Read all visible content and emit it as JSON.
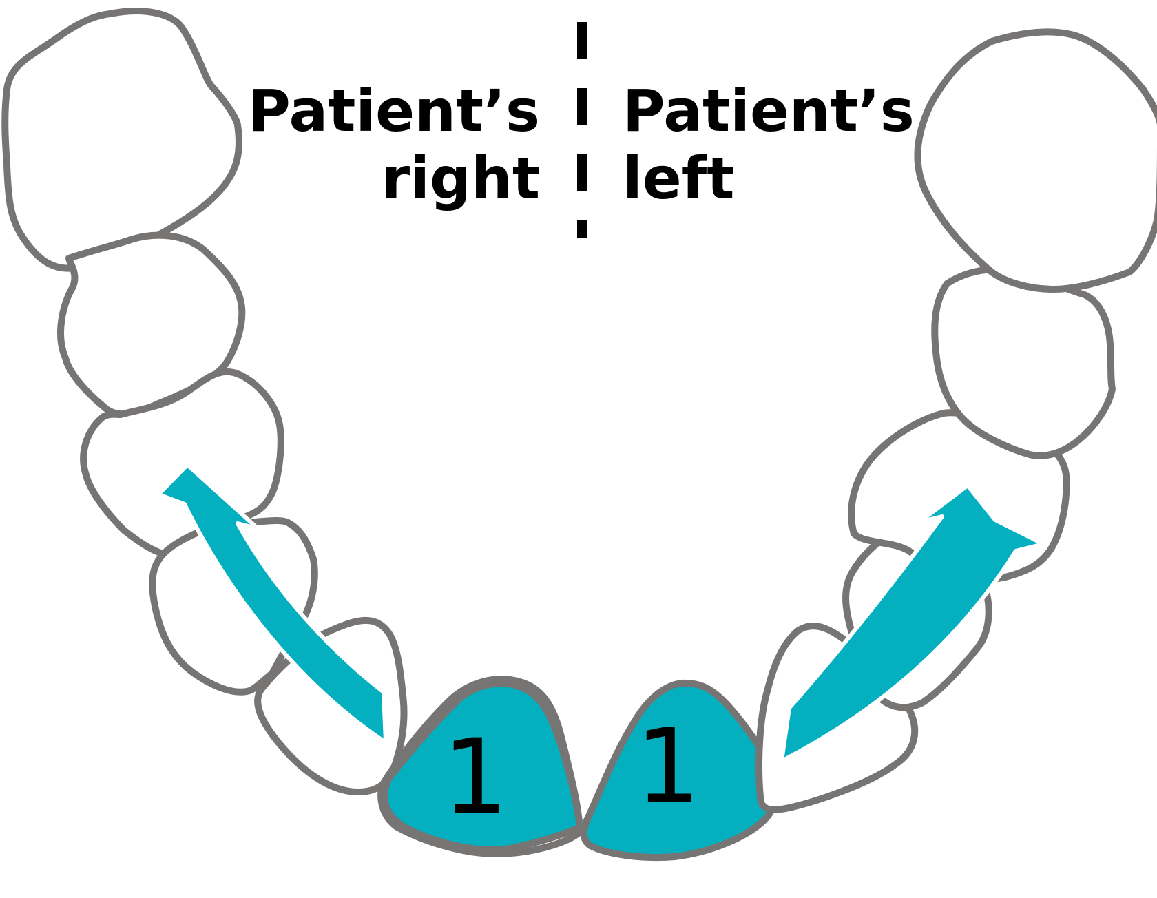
{
  "labels": {
    "right_line1": "Patient’s",
    "right_line2": "right",
    "left_line1": "Patient’s",
    "left_line2": "left"
  },
  "teeth": {
    "highlighted_mark_left": "1",
    "highlighted_mark_right": "1"
  },
  "colors": {
    "highlight": "#04b0bf",
    "outline": "#777474",
    "text": "#000000",
    "midline": "#000000"
  },
  "icons": {
    "arrow_right_side": "double-headed-curved-arrow",
    "arrow_left_side": "double-headed-curved-arrow",
    "midline": "dashed-midline"
  }
}
